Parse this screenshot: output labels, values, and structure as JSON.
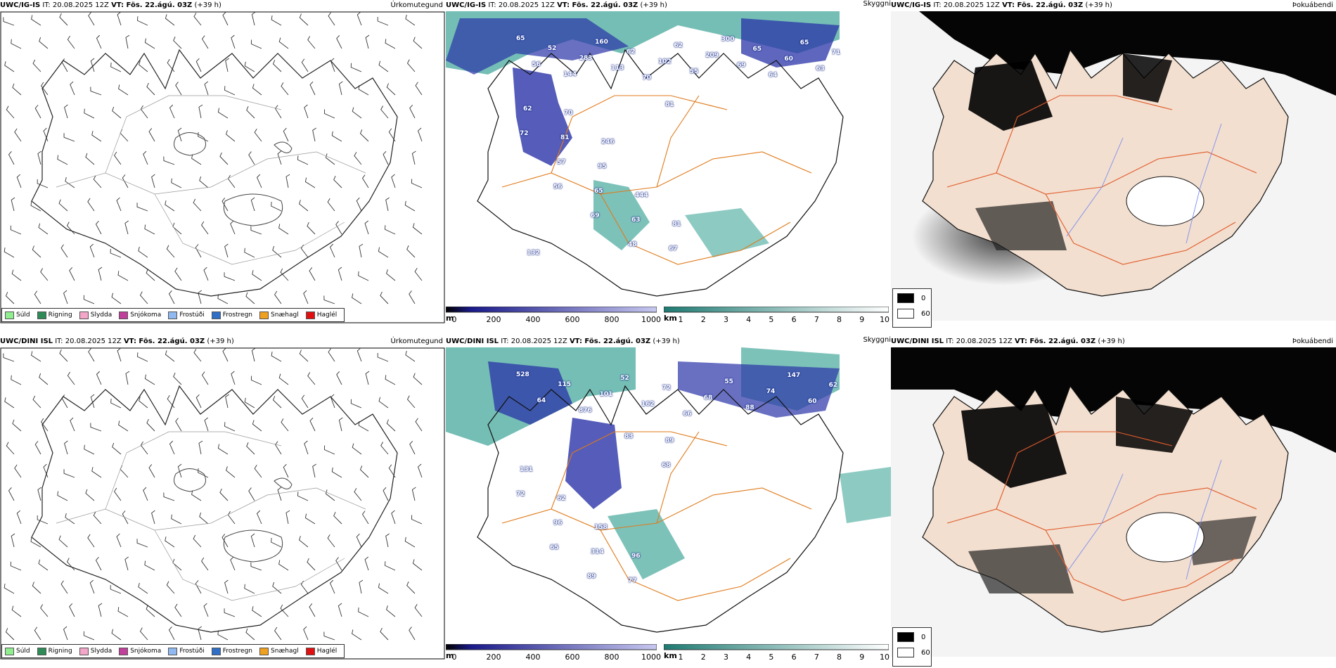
{
  "panels": {
    "precip_top": {
      "model": "UWC/IG-IS",
      "it": "IT: 20.08.2025 12Z",
      "vt": "VT: Fös. 22.ágú. 03Z",
      "lead": "(+39 h)",
      "title": "Úrkomutegund"
    },
    "cloud_top": {
      "model": "UWC/IG-IS",
      "it": "IT: 20.08.2025 12Z",
      "vt": "VT: Fös. 22.ágú. 03Z",
      "lead": "(+39 h)",
      "title": "Skyggni"
    },
    "fog_top": {
      "model": "UWC/IG-IS",
      "it": "IT: 20.08.2025 12Z",
      "vt": "VT: Fös. 22.ágú. 03Z",
      "lead": "(+39 h)",
      "title": "Þokuábendi"
    },
    "precip_bot": {
      "model": "UWC/DINI ISL",
      "it": "IT: 20.08.2025 12Z",
      "vt": "VT: Fös. 22.ágú. 03Z",
      "lead": "(+39 h)",
      "title": "Úrkomutegund"
    },
    "cloud_bot": {
      "model": "UWC/DINI ISL",
      "it": "IT: 20.08.2025 12Z",
      "vt": "VT: Fös. 22.ágú. 03Z",
      "lead": "(+39 h)",
      "title": "Skyggni"
    },
    "fog_bot": {
      "model": "UWC/DINI ISL",
      "it": "IT: 20.08.2025 12Z",
      "vt": "VT: Fös. 22.ágú. 03Z",
      "lead": "(+39 h)",
      "title": "Þokuábendi"
    }
  },
  "precip_legend": [
    {
      "label": "Súld",
      "color": "#90ee90"
    },
    {
      "label": "Rigning",
      "color": "#2e8b57"
    },
    {
      "label": "Slydda",
      "color": "#f4a6c8"
    },
    {
      "label": "Snjókoma",
      "color": "#c0409a"
    },
    {
      "label": "Frostúði",
      "color": "#8fb9f0"
    },
    {
      "label": "Frostregn",
      "color": "#2f6fc8"
    },
    {
      "label": "Snæhagl",
      "color": "#f0a020"
    },
    {
      "label": "Haglél",
      "color": "#e01010"
    }
  ],
  "cloud_base_bar": {
    "unit": "m",
    "ticks": [
      "0",
      "200",
      "400",
      "600",
      "800",
      "1000"
    ]
  },
  "visibility_bar": {
    "unit": "km",
    "ticks": [
      "1",
      "2",
      "3",
      "4",
      "5",
      "6",
      "7",
      "8",
      "9",
      "10"
    ]
  },
  "fog_legend": [
    {
      "label": "0",
      "color": "#000000"
    },
    {
      "label": "60",
      "color": "#ffffff"
    }
  ],
  "cloud_labels_top": [
    "65",
    "56",
    "52",
    "144",
    "283",
    "160",
    "113",
    "62",
    "70",
    "102",
    "62",
    "55",
    "209",
    "300",
    "69",
    "65",
    "64",
    "60",
    "65",
    "63",
    "71",
    "56",
    "69",
    "48",
    "81",
    "72",
    "57",
    "65",
    "63",
    "67",
    "62",
    "81",
    "95",
    "444",
    "81",
    "132",
    "70",
    "246"
  ],
  "cloud_labels_bot": [
    "528",
    "64",
    "115",
    "876",
    "101",
    "52",
    "162",
    "72",
    "66",
    "68",
    "55",
    "88",
    "74",
    "147",
    "60",
    "62",
    "65",
    "89",
    "83",
    "68",
    "72",
    "96",
    "314",
    "77",
    "89",
    "131",
    "62",
    "158",
    "96"
  ]
}
